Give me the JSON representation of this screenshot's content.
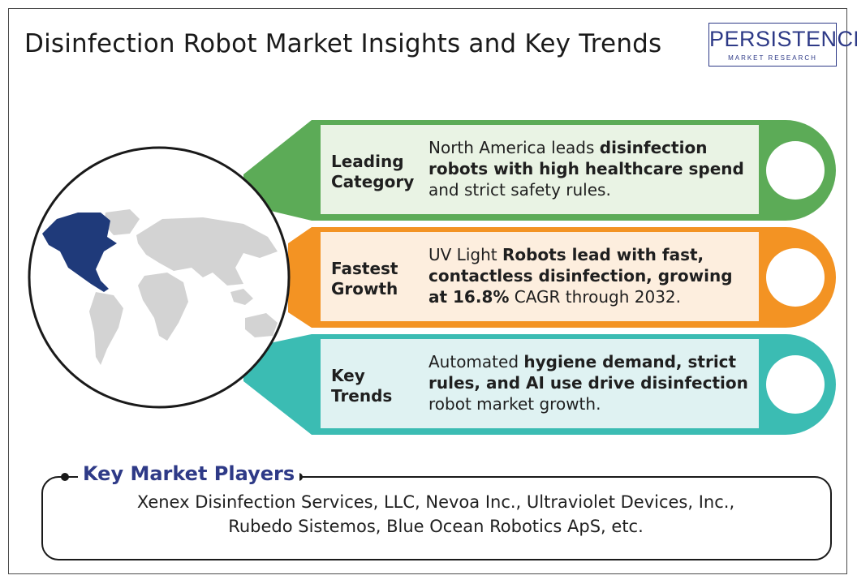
{
  "title": "Disinfection Robot Market Insights and Key Trends",
  "logo": {
    "main": "PERSISTENCE",
    "sub": "MARKET RESEARCH",
    "color": "#2e3a87"
  },
  "cards": [
    {
      "label_line1": "Leading",
      "label_line2": "Category",
      "text_parts": [
        "North America leads ",
        "disinfection robots with high healthcare spend",
        " and strict safety rules."
      ],
      "accent": "#5cab57",
      "fill": "#e9f3e4"
    },
    {
      "label_line1": "Fastest",
      "label_line2": "Growth",
      "text_parts": [
        "UV Light ",
        "Robots lead with fast, contactless disinfection, growing at 16.8%",
        " CAGR through 2032."
      ],
      "accent": "#f39323",
      "fill": "#fdeede"
    },
    {
      "label_line1": "Key",
      "label_line2": "Trends",
      "text_parts": [
        "Automated ",
        "hygiene demand, strict rules, and AI use drive disinfection",
        " robot market growth."
      ],
      "accent": "#3bbcb3",
      "fill": "#dff2f2"
    }
  ],
  "players": {
    "title": "Key Market Players",
    "line1": "Xenex Disinfection Services, LLC, Nevoa Inc., Ultraviolet Devices, Inc.,",
    "line2": "Rubedo Sistemos, Blue Ocean Robotics ApS, etc."
  },
  "map": {
    "highlight_region": "North America",
    "highlight_color": "#1f3a7a",
    "land_color": "#d3d3d3"
  }
}
